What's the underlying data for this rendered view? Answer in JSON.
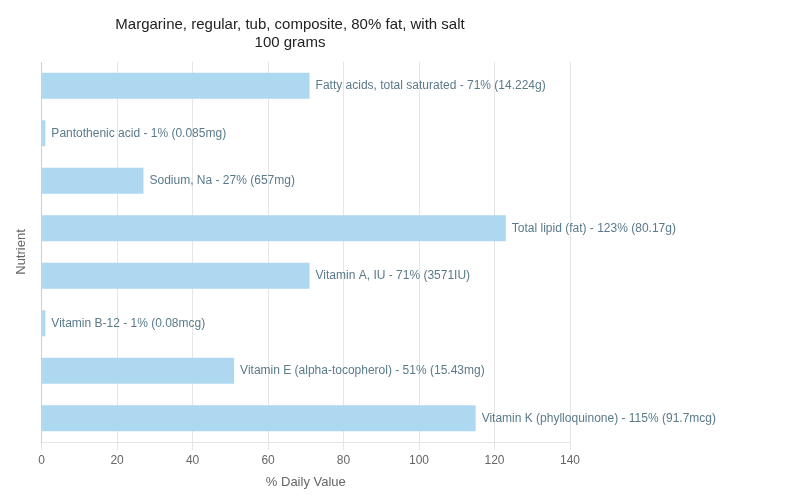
{
  "chart_data": {
    "type": "bar",
    "orientation": "horizontal",
    "title": "Margarine, regular, tub, composite, 80% fat, with salt\n100 grams",
    "categories": [
      "Fatty acids, total saturated - 71% (14.224g)",
      "Pantothenic acid - 1% (0.085mg)",
      "Sodium, Na - 27% (657mg)",
      "Total lipid (fat) - 123% (80.17g)",
      "Vitamin A, IU - 71% (3571IU)",
      "Vitamin B-12 - 1% (0.08mcg)",
      "Vitamin E (alpha-tocopherol) - 51% (15.43mg)",
      "Vitamin K (phylloquinone) - 115% (91.7mcg)"
    ],
    "values": [
      71,
      1,
      27,
      123,
      71,
      1,
      51,
      115
    ],
    "color": "#add8f0",
    "xlabel": "% Daily Value",
    "ylabel": "Nutrient",
    "xlim": [
      0,
      140
    ],
    "xticks": [
      0,
      20,
      40,
      60,
      80,
      100,
      120,
      140
    ],
    "grid": true,
    "tick_labels": "x"
  }
}
